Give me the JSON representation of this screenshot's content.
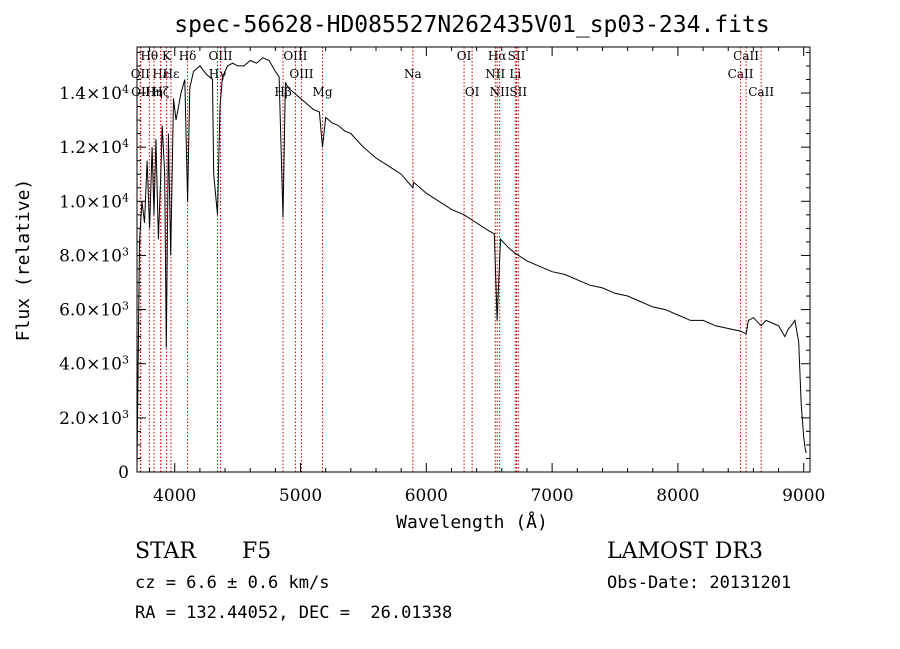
{
  "chart_data": {
    "type": "line",
    "title": "spec-56628-HD085527N262435V01_sp03-234.fits",
    "xlabel": "Wavelength (Å)",
    "ylabel": "Flux (relative)",
    "xlim": [
      3700,
      9050
    ],
    "ylim": [
      0,
      15700
    ],
    "x_ticks": [
      4000,
      5000,
      6000,
      7000,
      8000,
      9000
    ],
    "y_ticks": [
      {
        "value": 0,
        "mant": "0",
        "exp": ""
      },
      {
        "value": 2000,
        "mant": "2.0×10",
        "exp": "3"
      },
      {
        "value": 4000,
        "mant": "4.0×10",
        "exp": "3"
      },
      {
        "value": 6000,
        "mant": "6.0×10",
        "exp": "3"
      },
      {
        "value": 8000,
        "mant": "8.0×10",
        "exp": "3"
      },
      {
        "value": 10000,
        "mant": "1.0×10",
        "exp": "4"
      },
      {
        "value": 12000,
        "mant": "1.2×10",
        "exp": "4"
      },
      {
        "value": 14000,
        "mant": "1.4×10",
        "exp": "4"
      }
    ],
    "spectrum": {
      "x": [
        3700,
        3720,
        3740,
        3760,
        3780,
        3800,
        3820,
        3835,
        3850,
        3870,
        3889,
        3900,
        3920,
        3933,
        3950,
        3968,
        3990,
        4010,
        4050,
        4080,
        4102,
        4120,
        4150,
        4200,
        4250,
        4300,
        4310,
        4340,
        4360,
        4380,
        4420,
        4460,
        4500,
        4550,
        4600,
        4650,
        4700,
        4750,
        4800,
        4830,
        4861,
        4880,
        4900,
        4950,
        5000,
        5050,
        5100,
        5150,
        5175,
        5200,
        5250,
        5300,
        5350,
        5400,
        5500,
        5600,
        5700,
        5800,
        5893,
        5900,
        5950,
        6000,
        6100,
        6200,
        6300,
        6400,
        6500,
        6540,
        6563,
        6590,
        6650,
        6700,
        6800,
        6900,
        7000,
        7100,
        7200,
        7300,
        7400,
        7500,
        7600,
        7700,
        7800,
        7900,
        8000,
        8100,
        8200,
        8300,
        8400,
        8500,
        8542,
        8560,
        8600,
        8662,
        8700,
        8800,
        8850,
        8880,
        8900,
        8930,
        8960,
        8980,
        9000,
        9010,
        9020
      ],
      "y": [
        200,
        8500,
        10000,
        9200,
        11500,
        9000,
        12000,
        9500,
        12300,
        8600,
        11000,
        12800,
        11000,
        4600,
        12500,
        8000,
        13800,
        13000,
        14000,
        14500,
        10000,
        14200,
        14800,
        15000,
        14700,
        14500,
        11000,
        9500,
        13500,
        14600,
        15000,
        15100,
        15000,
        15000,
        15200,
        15100,
        15300,
        15200,
        14800,
        14600,
        9400,
        14400,
        14200,
        14000,
        13800,
        13600,
        13400,
        13300,
        12000,
        13100,
        12900,
        12800,
        12600,
        12500,
        12000,
        11600,
        11300,
        11000,
        10500,
        10700,
        10500,
        10300,
        10000,
        9700,
        9500,
        9200,
        8900,
        8800,
        5600,
        8600,
        8300,
        8100,
        7800,
        7600,
        7400,
        7300,
        7100,
        6900,
        6800,
        6600,
        6500,
        6300,
        6100,
        6000,
        5800,
        5600,
        5600,
        5400,
        5300,
        5200,
        5100,
        5600,
        5700,
        5400,
        5600,
        5400,
        5000,
        5300,
        5400,
        5600,
        4800,
        2500,
        1300,
        900,
        700
      ]
    },
    "lines": [
      {
        "name": "Hθ",
        "x": 3798,
        "row": 0
      },
      {
        "name": "OII",
        "x": 3727,
        "row": 1
      },
      {
        "name": "OII",
        "x": 3730,
        "row": 2
      },
      {
        "name": "K",
        "x": 3934,
        "row": 0
      },
      {
        "name": "Hε",
        "x": 3889,
        "row": 1
      },
      {
        "name": "Hη",
        "x": 3835,
        "row": 2
      },
      {
        "name": "Hδ",
        "x": 4102,
        "row": 0
      },
      {
        "name": "Hε",
        "x": 3970,
        "row": 1
      },
      {
        "name": "Hζ",
        "x": 3889,
        "row": 2
      },
      {
        "name": "OIII",
        "x": 4364,
        "row": 0
      },
      {
        "name": "Hγ",
        "x": 4340,
        "row": 1
      },
      {
        "name": "Hβ",
        "x": 4861,
        "row": 2
      },
      {
        "name": "OIII",
        "x": 4959,
        "row": 0
      },
      {
        "name": "OIII",
        "x": 5007,
        "row": 1
      },
      {
        "name": "Mg",
        "x": 5175,
        "row": 2
      },
      {
        "name": "Na",
        "x": 5893,
        "row": 1
      },
      {
        "name": "OI",
        "x": 6300,
        "row": 0
      },
      {
        "name": "OI",
        "x": 6364,
        "row": 2
      },
      {
        "name": "Hα",
        "x": 6563,
        "row": 0
      },
      {
        "name": "NII",
        "x": 6548,
        "row": 1
      },
      {
        "name": "NII",
        "x": 6583,
        "row": 2
      },
      {
        "name": "SII",
        "x": 6717,
        "row": 0
      },
      {
        "name": "Li",
        "x": 6707,
        "row": 1
      },
      {
        "name": "SII",
        "x": 6731,
        "row": 2
      },
      {
        "name": "CaII",
        "x": 8542,
        "row": 0
      },
      {
        "name": "CaII",
        "x": 8498,
        "row": 1
      },
      {
        "name": "CaII",
        "x": 8662,
        "row": 2
      }
    ]
  },
  "info": {
    "object_class": "STAR",
    "subclass": "F5",
    "survey": "LAMOST DR3",
    "cz": "cz = 6.6 ± 0.6 km/s",
    "obs_date": "Obs-Date: 20131201",
    "radec": "RA = 132.44052, DEC =  26.01338"
  },
  "colors": {
    "line_marker": "#c80000",
    "ink": "#000000"
  }
}
